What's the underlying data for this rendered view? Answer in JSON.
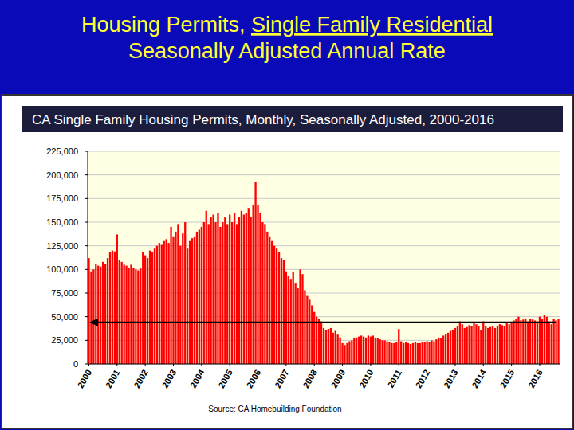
{
  "slide": {
    "title": [
      "Housing Permits, Single Family Residential",
      "Seasonally Adjusted Annual Rate"
    ]
  },
  "chart_data": {
    "type": "bar",
    "title": "CA Single Family Housing Permits, Monthly, Seasonally Adjusted, 2000-2016",
    "source": "Source: CA Homebuilding Foundation",
    "color": "#ff0000",
    "grid": true,
    "ylim": [
      0,
      225000
    ],
    "yticks": [
      0,
      {
        "value": 25000,
        "label": "25,000"
      },
      {
        "value": 50000,
        "label": "50,000"
      },
      {
        "value": 75000,
        "label": "75,000"
      },
      {
        "value": 100000,
        "label": "100,000"
      },
      {
        "value": 125000,
        "label": "125,000"
      },
      {
        "value": 150000,
        "label": "150,000"
      },
      {
        "value": 175000,
        "label": "175,000"
      },
      {
        "value": 200000,
        "label": "200,000"
      },
      {
        "value": 225000,
        "label": "225,000"
      }
    ],
    "reference_value": 44000,
    "categories": [
      "2000",
      null,
      null,
      null,
      null,
      null,
      null,
      null,
      null,
      null,
      null,
      null,
      "2001",
      null,
      null,
      null,
      null,
      null,
      null,
      null,
      null,
      null,
      null,
      null,
      "2002",
      null,
      null,
      null,
      null,
      null,
      null,
      null,
      null,
      null,
      null,
      null,
      "2003",
      null,
      null,
      null,
      null,
      null,
      null,
      null,
      null,
      null,
      null,
      null,
      "2004",
      null,
      null,
      null,
      null,
      null,
      null,
      null,
      null,
      null,
      null,
      null,
      "2005",
      null,
      null,
      null,
      null,
      null,
      null,
      null,
      null,
      null,
      null,
      null,
      "2006",
      null,
      null,
      null,
      null,
      null,
      null,
      null,
      null,
      null,
      null,
      null,
      "2007",
      null,
      null,
      null,
      null,
      null,
      null,
      null,
      null,
      null,
      null,
      null,
      "2008",
      null,
      null,
      null,
      null,
      null,
      null,
      null,
      null,
      null,
      null,
      null,
      "2009",
      null,
      null,
      null,
      null,
      null,
      null,
      null,
      null,
      null,
      null,
      null,
      "2010",
      null,
      null,
      null,
      null,
      null,
      null,
      null,
      null,
      null,
      null,
      null,
      "2011",
      null,
      null,
      null,
      null,
      null,
      null,
      null,
      null,
      null,
      null,
      null,
      "2012",
      null,
      null,
      null,
      null,
      null,
      null,
      null,
      null,
      null,
      null,
      null,
      "2013",
      null,
      null,
      null,
      null,
      null,
      null,
      null,
      null,
      null,
      null,
      null,
      "2014",
      null,
      null,
      null,
      null,
      null,
      null,
      null,
      null,
      null,
      null,
      null,
      "2015",
      null,
      null,
      null,
      null,
      null,
      null,
      null,
      null,
      null,
      null,
      null,
      "2016",
      null,
      null,
      null,
      null,
      null,
      null,
      null,
      null
    ],
    "values": [
      112000,
      98000,
      100000,
      106000,
      104000,
      103000,
      108000,
      106000,
      112000,
      118000,
      120000,
      119000,
      137000,
      110000,
      108000,
      105000,
      104000,
      102000,
      105000,
      102000,
      100000,
      99000,
      101000,
      118000,
      115000,
      112000,
      120000,
      118000,
      122000,
      125000,
      128000,
      126000,
      130000,
      132000,
      128000,
      145000,
      135000,
      140000,
      148000,
      125000,
      138000,
      150000,
      122000,
      130000,
      133000,
      135000,
      140000,
      142000,
      145000,
      150000,
      162000,
      148000,
      155000,
      158000,
      150000,
      160000,
      145000,
      150000,
      155000,
      148000,
      158000,
      150000,
      160000,
      148000,
      155000,
      162000,
      158000,
      160000,
      165000,
      155000,
      168000,
      193000,
      168000,
      160000,
      150000,
      148000,
      140000,
      135000,
      130000,
      125000,
      122000,
      118000,
      112000,
      110000,
      98000,
      93000,
      90000,
      97000,
      85000,
      80000,
      100000,
      95000,
      78000,
      72000,
      68000,
      62000,
      55000,
      50000,
      48000,
      45000,
      38000,
      36000,
      37000,
      38000,
      33000,
      35000,
      31000,
      28000,
      22000,
      20000,
      22000,
      24000,
      25000,
      27000,
      28000,
      29000,
      30000,
      29000,
      28000,
      30000,
      29000,
      30000,
      28000,
      27000,
      26000,
      25000,
      25000,
      24000,
      23000,
      22000,
      22000,
      23000,
      37000,
      24000,
      22000,
      23000,
      22000,
      21000,
      22000,
      23000,
      22000,
      22000,
      23000,
      23000,
      24000,
      23000,
      25000,
      24000,
      26000,
      28000,
      27000,
      30000,
      32000,
      33000,
      35000,
      36000,
      38000,
      40000,
      45000,
      42000,
      38000,
      39000,
      41000,
      40000,
      44000,
      42000,
      40000,
      36000,
      45000,
      40000,
      38000,
      39000,
      40000,
      38000,
      40000,
      42000,
      41000,
      40000,
      43000,
      42000,
      44000,
      46000,
      48000,
      50000,
      46000,
      47000,
      48000,
      45000,
      48000,
      47000,
      46000,
      45000,
      50000,
      48000,
      52000,
      50000,
      45000,
      42000,
      48000,
      46000,
      48000
    ]
  }
}
